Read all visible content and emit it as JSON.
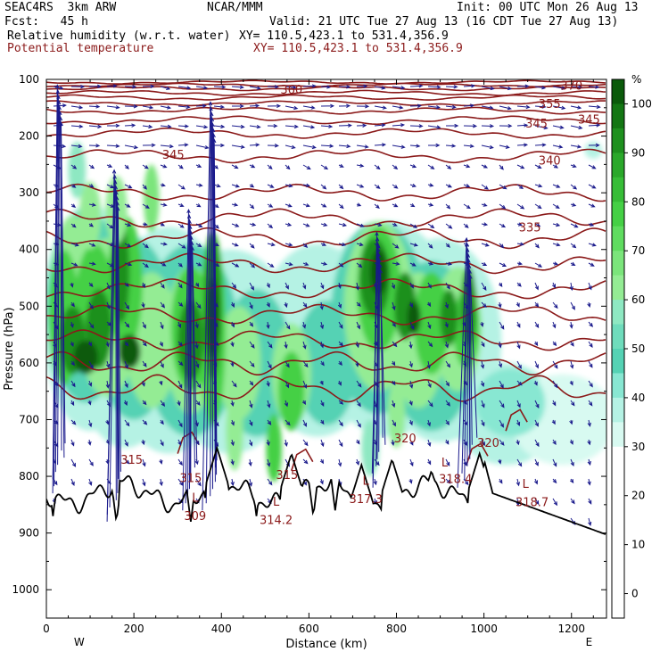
{
  "header": {
    "model": "SEAC4RS  3km ARW",
    "org": "NCAR/MMM",
    "init": "Init: 00 UTC Mon 26 Aug 13",
    "fcst": "Fcst:   45 h",
    "valid": "Valid: 21 UTC Tue 27 Aug 13 (16 CDT Tue 27 Aug 13)",
    "field1": "Relative humidity (w.r.t. water)",
    "field1_xy": "XY= 110.5,423.1 to 531.4,356.9",
    "field2": "Potential temperature",
    "field2_xy": "XY= 110.5,423.1 to 531.4,356.9"
  },
  "colors": {
    "theta_line": "#8b1a1a",
    "wind_vector": "#1a1a8c",
    "terrain_line": "#000000"
  },
  "chart_data": {
    "type": "heatmap",
    "ylabel": "Pressure (hPa)",
    "xlabel": "Distance (km)",
    "xlim": [
      0,
      1280
    ],
    "ylim": [
      1050,
      100
    ],
    "x_ticks": [
      0,
      200,
      400,
      600,
      800,
      1000,
      1200
    ],
    "y_ticks": [
      100,
      200,
      300,
      400,
      500,
      600,
      700,
      800,
      900,
      1000
    ],
    "x_end_labels": [
      "W",
      "E"
    ],
    "colorbar": {
      "unit": "%",
      "labels": [
        "100",
        "90",
        "80",
        "70",
        "60",
        "50",
        "40",
        "30",
        "20",
        "10",
        "0"
      ],
      "levels": [
        105,
        100,
        95,
        90,
        85,
        80,
        75,
        70,
        65,
        60,
        55,
        50,
        45,
        40,
        35,
        30,
        25,
        20,
        15,
        10,
        5,
        0,
        -5
      ],
      "colors": [
        "#0a5a0a",
        "#137613",
        "#1e901e",
        "#2aa82a",
        "#37bd37",
        "#45d045",
        "#5fdc5f",
        "#7be57b",
        "#94ec94",
        "#8ee8c2",
        "#6fdcbc",
        "#55d2b4",
        "#88e7d2",
        "#b5f2e4",
        "#d8faf1",
        "#ffffff",
        "#ffffff",
        "#ffffff",
        "#ffffff",
        "#ffffff",
        "#ffffff",
        "#ffffff"
      ]
    },
    "theta_contour_labels": [
      {
        "text": "370",
        "x": 1200,
        "p": 118
      },
      {
        "text": "360",
        "x": 560,
        "p": 125
      },
      {
        "text": "355",
        "x": 1150,
        "p": 150
      },
      {
        "text": "345",
        "x": 1120,
        "p": 185
      },
      {
        "text": "345",
        "x": 1240,
        "p": 178
      },
      {
        "text": "345",
        "x": 290,
        "p": 240
      },
      {
        "text": "340",
        "x": 1150,
        "p": 250
      },
      {
        "text": "335",
        "x": 1105,
        "p": 368
      },
      {
        "text": "320",
        "x": 820,
        "p": 740
      },
      {
        "text": "320",
        "x": 1010,
        "p": 748
      },
      {
        "text": "315",
        "x": 195,
        "p": 778
      },
      {
        "text": "315",
        "x": 330,
        "p": 810
      },
      {
        "text": "315",
        "x": 550,
        "p": 805
      },
      {
        "text": "318.4",
        "x": 935,
        "p": 812
      },
      {
        "text": "317.3",
        "x": 730,
        "p": 847
      },
      {
        "text": "318.7",
        "x": 1110,
        "p": 853
      },
      {
        "text": "309",
        "x": 340,
        "p": 877
      },
      {
        "text": "314.2",
        "x": 525,
        "p": 884
      }
    ],
    "low_markers": [
      {
        "text": "L",
        "x": 340,
        "p": 845
      },
      {
        "text": "L",
        "x": 525,
        "p": 852
      },
      {
        "text": "L",
        "x": 730,
        "p": 815
      },
      {
        "text": "L",
        "x": 910,
        "p": 783
      },
      {
        "text": "L",
        "x": 1095,
        "p": 820
      }
    ]
  }
}
